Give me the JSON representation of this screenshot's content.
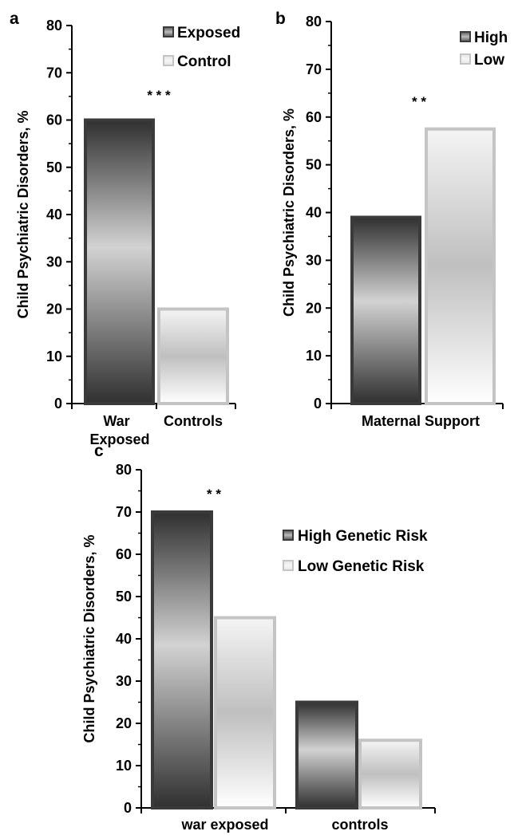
{
  "chart_data": [
    {
      "panel": "a",
      "type": "bar",
      "title": "",
      "xlabel": "",
      "ylabel": "Child Psychiatric Disorders, %",
      "categories": [
        "War Exposed",
        "Controls"
      ],
      "values": [
        60,
        20
      ],
      "ylim": [
        0,
        80
      ],
      "ticks": [
        0,
        10,
        20,
        30,
        40,
        50,
        60,
        70,
        80
      ],
      "legend": [
        {
          "name": "Exposed",
          "color": "#3a3a3a"
        },
        {
          "name": "Control",
          "color": "#bdbdbd"
        }
      ],
      "legend_position": "top-right",
      "significance": "* * *",
      "grid": false
    },
    {
      "panel": "b",
      "type": "bar",
      "title": "",
      "xlabel": "Maternal Support",
      "ylabel": "Child Psychiatric Disorders, %",
      "categories": [
        "High",
        "Low"
      ],
      "values": [
        39,
        57.5
      ],
      "ylim": [
        0,
        80
      ],
      "ticks": [
        0,
        10,
        20,
        30,
        40,
        50,
        60,
        70,
        80
      ],
      "legend": [
        {
          "name": "High",
          "color": "#3a3a3a"
        },
        {
          "name": "Low",
          "color": "#bdbdbd"
        }
      ],
      "legend_position": "top-right",
      "significance": "* *",
      "grid": false
    },
    {
      "panel": "c",
      "type": "bar",
      "title": "",
      "xlabel": "",
      "ylabel": "Child Psychiatric Disorders, %",
      "categories": [
        "war exposed",
        "controls"
      ],
      "series": [
        {
          "name": "High Genetic Risk",
          "values": [
            70,
            25
          ],
          "color": "#3a3a3a"
        },
        {
          "name": "Low Genetic Risk",
          "values": [
            45,
            16
          ],
          "color": "#bdbdbd"
        }
      ],
      "ylim": [
        0,
        80
      ],
      "ticks": [
        0,
        10,
        20,
        30,
        40,
        50,
        60,
        70,
        80
      ],
      "legend_position": "top-right",
      "significance": "* *",
      "grid": false
    }
  ]
}
